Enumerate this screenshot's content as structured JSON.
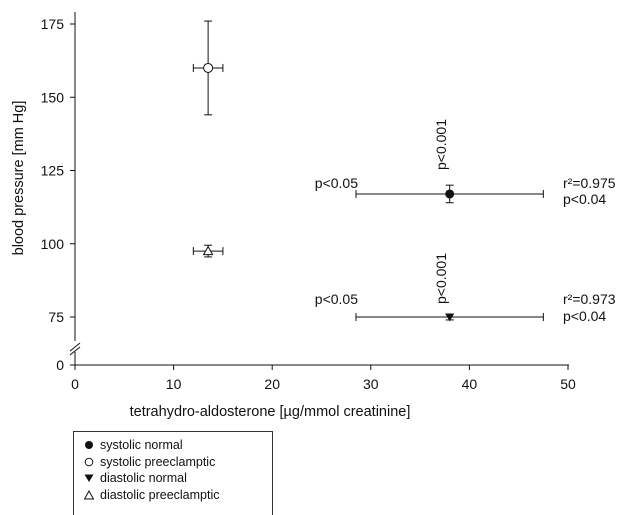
{
  "chart_data": {
    "type": "scatter",
    "title": "",
    "xlabel": "tetrahydro-aldosterone [µg/mmol creatinine]",
    "ylabel": "blood pressure [mm Hg]",
    "xlim": [
      0,
      50
    ],
    "ylim": [
      0,
      180
    ],
    "y_axis_break": true,
    "grid": false,
    "legend_position": "below-left",
    "x_ticks": [
      "0",
      "10",
      "20",
      "30",
      "40",
      "50"
    ],
    "y_ticks": [
      "0",
      "75",
      "100",
      "125",
      "150",
      "175"
    ],
    "series": [
      {
        "name": "systolic normal",
        "marker": "filled-circle",
        "x": 38,
        "y": 117,
        "x_err": [
          28.5,
          47.5
        ],
        "y_err": [
          114,
          120
        ]
      },
      {
        "name": "systolic preeclamptic",
        "marker": "open-circle",
        "x": 13.5,
        "y": 160,
        "x_err": [
          12,
          15
        ],
        "y_err": [
          144,
          176
        ]
      },
      {
        "name": "diastolic normal",
        "marker": "filled-down-triangle",
        "x": 38,
        "y": 75,
        "x_err": [
          28.5,
          47.5
        ],
        "y_err": [
          74,
          76
        ]
      },
      {
        "name": "diastolic preeclamptic",
        "marker": "open-up-triangle",
        "x": 13.5,
        "y": 97.5,
        "x_err": [
          12,
          15
        ],
        "y_err": [
          95.5,
          99.5
        ]
      }
    ],
    "annotations": {
      "sys_p_vertical": "p<0.001",
      "sys_p_left": "p<0.05",
      "sys_r2": "r²=0.975",
      "sys_p_right": "p<0.04",
      "dia_p_vertical": "p<0.001",
      "dia_p_left": "p<0.05",
      "dia_r2": "r²=0.973",
      "dia_p_right": "p<0.04"
    }
  }
}
